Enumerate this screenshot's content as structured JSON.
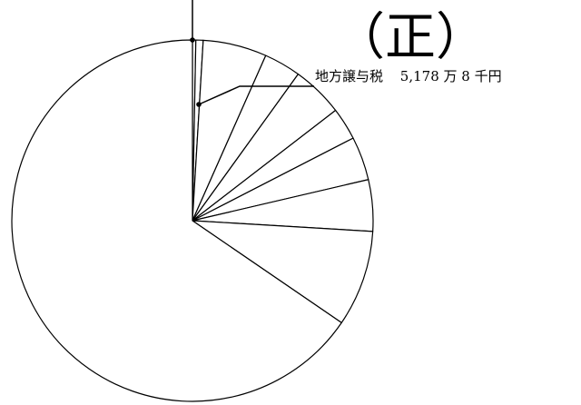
{
  "stamp": "（正）",
  "chart_data": {
    "type": "pie",
    "start": "top",
    "direction": "clockwise",
    "slices": [
      {
        "value": 0.3
      },
      {
        "value": 0.65
      },
      {
        "value": 5.7
      },
      {
        "value": 3.3
      },
      {
        "value": 4.6
      },
      {
        "value": 2.9
      },
      {
        "value": 3.9
      },
      {
        "value": 4.6
      },
      {
        "value": 8.6
      },
      {
        "value": 65.45
      }
    ],
    "callout": {
      "slice_index": 1,
      "label": "地方譲与税",
      "value_text": "5,178 万 8 千円"
    },
    "colors": {
      "line": "#000000",
      "fill": "#ffffff"
    }
  }
}
